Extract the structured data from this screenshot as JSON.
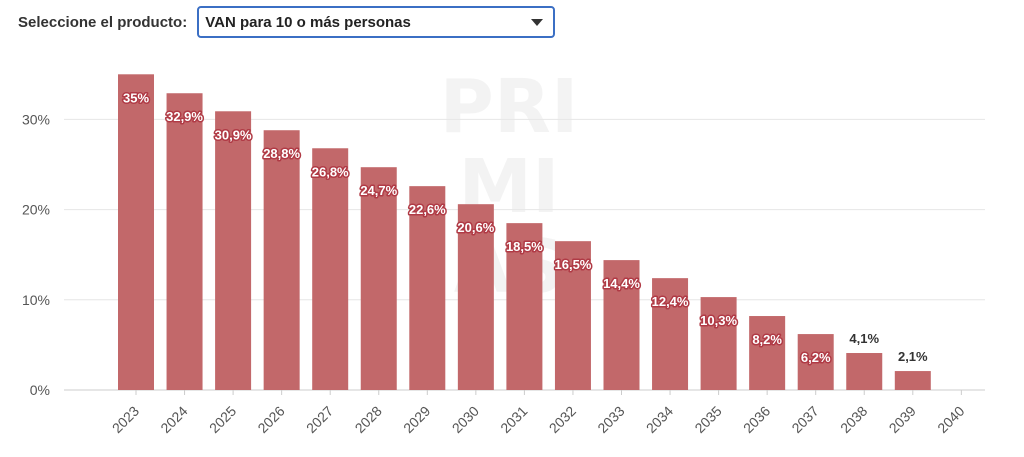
{
  "selector": {
    "label": "Seleccione el producto:",
    "value": "VAN para 10 o más personas"
  },
  "watermark": [
    "PRI",
    "MI",
    "AS"
  ],
  "colors": {
    "bar": "#c2686a",
    "grid": "#e6e6e6",
    "select_border": "#3b6fc4"
  },
  "chart_data": {
    "type": "bar",
    "categories": [
      "2023",
      "2024",
      "2025",
      "2026",
      "2027",
      "2028",
      "2029",
      "2030",
      "2031",
      "2032",
      "2033",
      "2034",
      "2035",
      "2036",
      "2037",
      "2038",
      "2039",
      "2040"
    ],
    "values": [
      35,
      32.9,
      30.9,
      28.8,
      26.8,
      24.7,
      22.6,
      20.6,
      18.5,
      16.5,
      14.4,
      12.4,
      10.3,
      8.2,
      6.2,
      4.1,
      2.1,
      null
    ],
    "data_labels": [
      "35%",
      "32,9%",
      "30,9%",
      "28,8%",
      "26,8%",
      "24,7%",
      "22,6%",
      "20,6%",
      "18,5%",
      "16,5%",
      "14,4%",
      "12,4%",
      "10,3%",
      "8,2%",
      "6,2%",
      "4,1%",
      "2,1%",
      ""
    ],
    "y_ticks": [
      0,
      10,
      20,
      30
    ],
    "y_tick_labels": [
      "0%",
      "10%",
      "20%",
      "30%"
    ],
    "ylim": [
      0,
      35
    ],
    "title": "",
    "xlabel": "",
    "ylabel": "",
    "grid": true,
    "legend": false
  }
}
